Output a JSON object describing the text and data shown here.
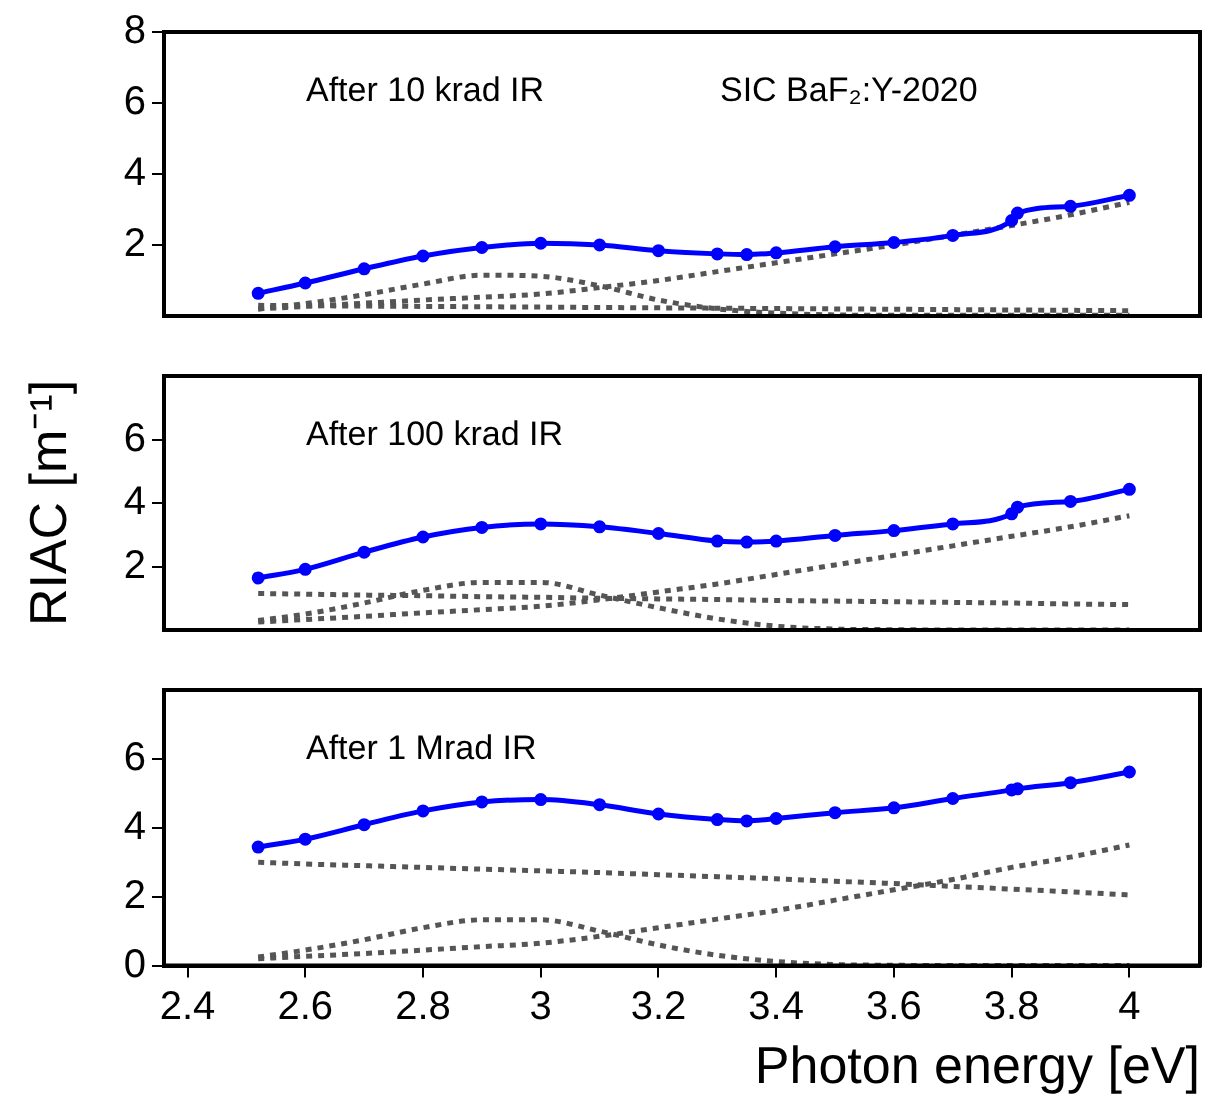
{
  "chart_data": [
    {
      "type": "line",
      "annotations": [
        "After 10 krad IR",
        "SIC BaF₂:Y-2020"
      ],
      "xlim": [
        2.36,
        4.12
      ],
      "xticks": [
        2.4,
        2.6,
        2.8,
        3,
        3.2,
        3.4,
        3.6,
        3.8,
        4
      ],
      "ylim": [
        0,
        8
      ],
      "yticks": [
        2,
        4,
        6,
        8
      ],
      "tick_labels": "y",
      "grid": false,
      "legend": false,
      "series": [
        {
          "color": "#0000ff",
          "marker": "circle",
          "line_style": "solid",
          "x": [
            2.52,
            2.6,
            2.7,
            2.8,
            2.9,
            3.0,
            3.1,
            3.2,
            3.3,
            3.35,
            3.4,
            3.5,
            3.6,
            3.7,
            3.8,
            3.81,
            3.9,
            4.0
          ],
          "values": [
            0.64,
            0.93,
            1.33,
            1.69,
            1.93,
            2.05,
            2.0,
            1.84,
            1.75,
            1.73,
            1.78,
            1.95,
            2.07,
            2.27,
            2.69,
            2.9,
            3.09,
            3.4
          ]
        },
        {
          "color": "#555555",
          "marker": "none",
          "line_style": "dotted",
          "x": [
            2.52,
            2.6,
            2.7,
            2.8,
            2.9,
            3.0,
            3.1,
            3.2,
            3.3,
            3.4,
            3.5,
            3.6,
            3.7,
            3.8,
            3.9,
            4.0
          ],
          "values": [
            0.2,
            0.35,
            0.6,
            0.9,
            1.15,
            1.12,
            0.85,
            0.45,
            0.2,
            0.08,
            0.03,
            0.02,
            0.02,
            0.02,
            0.02,
            0.02
          ]
        },
        {
          "color": "#555555",
          "marker": "none",
          "line_style": "dotted",
          "x": [
            2.52,
            2.6,
            2.7,
            2.8,
            2.9,
            3.0,
            3.1,
            3.2,
            3.3,
            3.4,
            3.5,
            3.6,
            3.7,
            3.8,
            3.9,
            4.0
          ],
          "values": [
            0.2,
            0.27,
            0.36,
            0.45,
            0.53,
            0.62,
            0.8,
            1.0,
            1.25,
            1.5,
            1.75,
            2.0,
            2.27,
            2.55,
            2.85,
            3.2
          ]
        },
        {
          "color": "#555555",
          "marker": "none",
          "line_style": "dotted",
          "x": [
            2.52,
            2.6,
            2.7,
            2.8,
            2.9,
            3.0,
            3.1,
            3.2,
            3.3,
            3.4,
            3.5,
            3.6,
            3.7,
            3.8,
            3.9,
            4.0
          ],
          "values": [
            0.3,
            0.29,
            0.28,
            0.27,
            0.26,
            0.25,
            0.24,
            0.23,
            0.22,
            0.21,
            0.2,
            0.19,
            0.18,
            0.17,
            0.16,
            0.15
          ]
        }
      ]
    },
    {
      "type": "line",
      "annotations": [
        "After 100 krad IR"
      ],
      "ylabel": "RIAC [m⁻¹]",
      "xlim": [
        2.36,
        4.12
      ],
      "xticks": [
        2.4,
        2.6,
        2.8,
        3,
        3.2,
        3.4,
        3.6,
        3.8,
        4
      ],
      "ylim": [
        0,
        8
      ],
      "yticks": [
        2,
        4,
        6
      ],
      "tick_labels": "y",
      "grid": false,
      "legend": false,
      "series": [
        {
          "color": "#0000ff",
          "marker": "circle",
          "line_style": "solid",
          "x": [
            2.52,
            2.6,
            2.7,
            2.8,
            2.9,
            3.0,
            3.1,
            3.2,
            3.3,
            3.35,
            3.4,
            3.5,
            3.6,
            3.7,
            3.8,
            3.81,
            3.9,
            4.0
          ],
          "values": [
            1.64,
            1.91,
            2.45,
            2.93,
            3.23,
            3.34,
            3.25,
            3.04,
            2.8,
            2.77,
            2.8,
            2.98,
            3.13,
            3.34,
            3.66,
            3.87,
            4.05,
            4.43
          ]
        },
        {
          "color": "#555555",
          "marker": "none",
          "line_style": "dotted",
          "x": [
            2.52,
            2.6,
            2.7,
            2.8,
            2.9,
            3.0,
            3.1,
            3.2,
            3.3,
            3.4,
            3.5,
            3.6,
            3.7,
            3.8,
            3.9,
            4.0
          ],
          "values": [
            1.15,
            1.13,
            1.1,
            1.08,
            1.05,
            1.03,
            1.0,
            0.98,
            0.96,
            0.93,
            0.91,
            0.89,
            0.87,
            0.85,
            0.82,
            0.8
          ]
        },
        {
          "color": "#555555",
          "marker": "none",
          "line_style": "dotted",
          "x": [
            2.52,
            2.6,
            2.7,
            2.8,
            2.9,
            3.0,
            3.1,
            3.2,
            3.3,
            3.4,
            3.5,
            3.6,
            3.7,
            3.8,
            3.9,
            4.0
          ],
          "values": [
            0.3,
            0.5,
            0.85,
            1.25,
            1.5,
            1.5,
            1.1,
            0.7,
            0.35,
            0.12,
            0.03,
            0.01,
            0,
            0,
            0,
            0
          ]
        },
        {
          "color": "#555555",
          "marker": "none",
          "line_style": "dotted",
          "x": [
            2.52,
            2.6,
            2.7,
            2.8,
            2.9,
            3.0,
            3.1,
            3.2,
            3.3,
            3.4,
            3.5,
            3.6,
            3.7,
            3.8,
            3.9,
            4.0
          ],
          "values": [
            0.25,
            0.33,
            0.43,
            0.54,
            0.64,
            0.75,
            0.95,
            1.2,
            1.45,
            1.75,
            2.05,
            2.35,
            2.65,
            2.95,
            3.25,
            3.6
          ]
        }
      ]
    },
    {
      "type": "line",
      "annotations": [
        "After 1 Mrad IR"
      ],
      "xlabel": "Photon energy [eV]",
      "xlim": [
        2.36,
        4.12
      ],
      "xticks": [
        2.4,
        2.6,
        2.8,
        3,
        3.2,
        3.4,
        3.6,
        3.8,
        4
      ],
      "ylim": [
        0,
        8
      ],
      "yticks": [
        0,
        2,
        4,
        6
      ],
      "grid": false,
      "legend": false,
      "series": [
        {
          "color": "#0000ff",
          "marker": "circle",
          "line_style": "solid",
          "x": [
            2.52,
            2.6,
            2.7,
            2.8,
            2.9,
            3.0,
            3.1,
            3.2,
            3.3,
            3.35,
            3.4,
            3.5,
            3.6,
            3.7,
            3.8,
            3.81,
            3.9,
            4.0
          ],
          "values": [
            3.44,
            3.67,
            4.09,
            4.49,
            4.75,
            4.82,
            4.67,
            4.4,
            4.24,
            4.2,
            4.27,
            4.44,
            4.58,
            4.85,
            5.1,
            5.13,
            5.31,
            5.62
          ]
        },
        {
          "color": "#555555",
          "marker": "none",
          "line_style": "dotted",
          "x": [
            2.52,
            2.6,
            2.7,
            2.8,
            2.9,
            3.0,
            3.1,
            3.2,
            3.3,
            3.4,
            3.5,
            3.6,
            3.7,
            3.8,
            3.9,
            4.0
          ],
          "values": [
            3.0,
            2.95,
            2.9,
            2.85,
            2.8,
            2.75,
            2.7,
            2.64,
            2.58,
            2.52,
            2.45,
            2.38,
            2.3,
            2.22,
            2.14,
            2.05
          ]
        },
        {
          "color": "#555555",
          "marker": "none",
          "line_style": "dotted",
          "x": [
            2.52,
            2.6,
            2.7,
            2.8,
            2.9,
            3.0,
            3.1,
            3.2,
            3.3,
            3.4,
            3.5,
            3.6,
            3.7,
            3.8,
            3.9,
            4.0
          ],
          "values": [
            0.25,
            0.45,
            0.75,
            1.1,
            1.33,
            1.33,
            1.0,
            0.6,
            0.3,
            0.12,
            0.03,
            0.01,
            0,
            0,
            0,
            0
          ]
        },
        {
          "color": "#555555",
          "marker": "none",
          "line_style": "dotted",
          "x": [
            2.52,
            2.6,
            2.7,
            2.8,
            2.9,
            3.0,
            3.1,
            3.2,
            3.3,
            3.4,
            3.5,
            3.6,
            3.7,
            3.8,
            3.9,
            4.0
          ],
          "values": [
            0.2,
            0.27,
            0.35,
            0.45,
            0.55,
            0.65,
            0.85,
            1.1,
            1.35,
            1.6,
            1.9,
            2.2,
            2.5,
            2.85,
            3.15,
            3.5
          ]
        }
      ]
    }
  ]
}
